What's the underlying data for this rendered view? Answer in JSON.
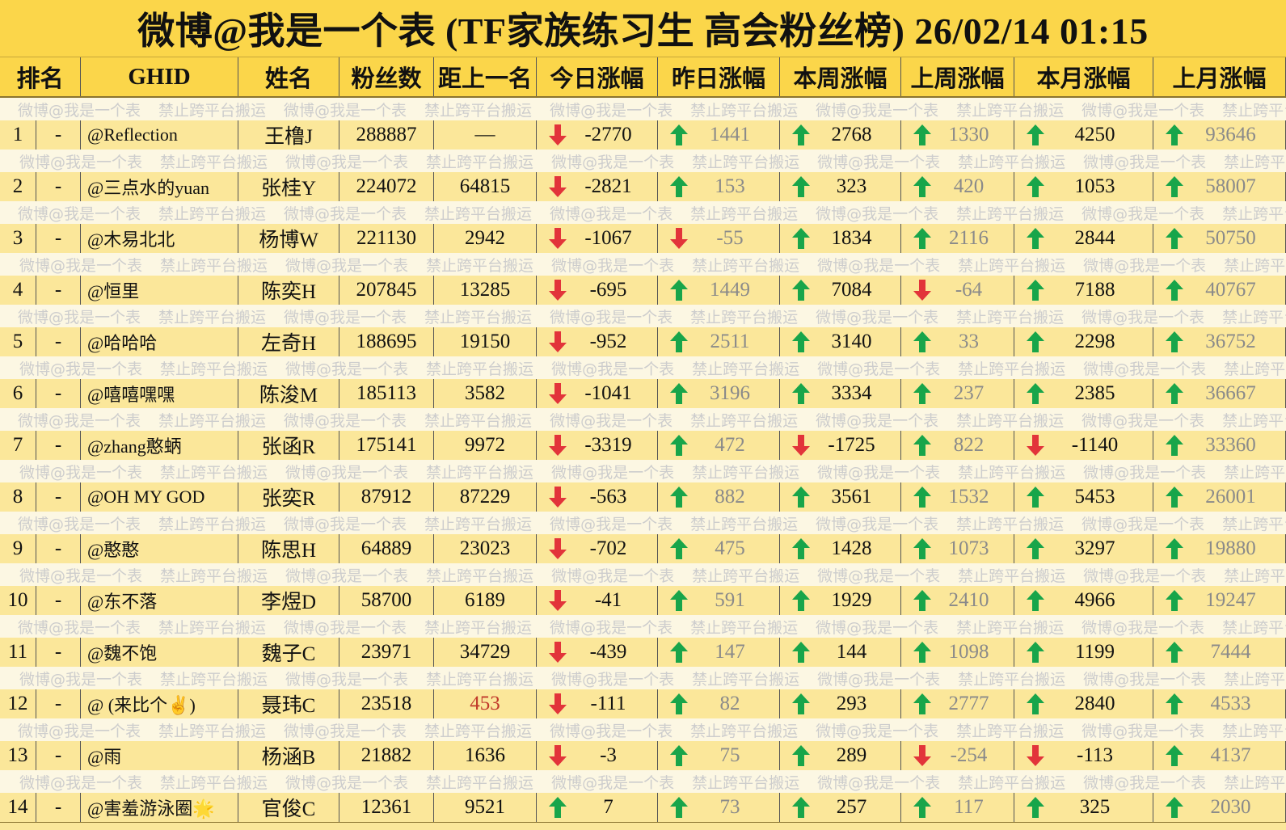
{
  "title": "微博@我是一个表 (TF家族练习生 高会粉丝榜)  26/02/14 01:15",
  "columns": [
    "排名",
    "GHID",
    "姓名",
    "粉丝数",
    "距上一名",
    "今日涨幅",
    "昨日涨幅",
    "本周涨幅",
    "上周涨幅",
    "本月涨幅",
    "上月涨幅"
  ],
  "watermark": [
    "微博@我是一个表",
    "禁止跨平台搬运"
  ],
  "colors": {
    "up": "#18a54a",
    "down": "#e2343a",
    "header_bg": "#fbd64a",
    "row_bg": "#fbe79a"
  },
  "rows": [
    {
      "rank": "1",
      "ghid_dash": "-",
      "ghid": "@Reflection",
      "name": "王橹J",
      "fans": "288887",
      "gap": "—",
      "today": "-2770",
      "yesterday": "1441",
      "week": "2768",
      "last_week": "1330",
      "month": "4250",
      "last_month": "93646"
    },
    {
      "rank": "2",
      "ghid_dash": "-",
      "ghid": "@三点水的yuan",
      "name": "张桂Y",
      "fans": "224072",
      "gap": "64815",
      "today": "-2821",
      "yesterday": "153",
      "week": "323",
      "last_week": "420",
      "month": "1053",
      "last_month": "58007"
    },
    {
      "rank": "3",
      "ghid_dash": "-",
      "ghid": "@木易北北",
      "name": "杨博W",
      "fans": "221130",
      "gap": "2942",
      "today": "-1067",
      "yesterday": "-55",
      "week": "1834",
      "last_week": "2116",
      "month": "2844",
      "last_month": "50750"
    },
    {
      "rank": "4",
      "ghid_dash": "-",
      "ghid": "@恒里",
      "name": "陈奕H",
      "fans": "207845",
      "gap": "13285",
      "today": "-695",
      "yesterday": "1449",
      "week": "7084",
      "last_week": "-64",
      "month": "7188",
      "last_month": "40767"
    },
    {
      "rank": "5",
      "ghid_dash": "-",
      "ghid": "@哈哈哈",
      "name": "左奇H",
      "fans": "188695",
      "gap": "19150",
      "today": "-952",
      "yesterday": "2511",
      "week": "3140",
      "last_week": "33",
      "month": "2298",
      "last_month": "36752"
    },
    {
      "rank": "6",
      "ghid_dash": "-",
      "ghid": "@嘻嘻嘿嘿",
      "name": "陈浚M",
      "fans": "185113",
      "gap": "3582",
      "today": "-1041",
      "yesterday": "3196",
      "week": "3334",
      "last_week": "237",
      "month": "2385",
      "last_month": "36667"
    },
    {
      "rank": "7",
      "ghid_dash": "-",
      "ghid": "@zhang憨蛃",
      "name": "张函R",
      "fans": "175141",
      "gap": "9972",
      "today": "-3319",
      "yesterday": "472",
      "week": "-1725",
      "last_week": "822",
      "month": "-1140",
      "last_month": "33360"
    },
    {
      "rank": "8",
      "ghid_dash": "-",
      "ghid": "@OH MY GOD",
      "name": "张奕R",
      "fans": "87912",
      "gap": "87229",
      "today": "-563",
      "yesterday": "882",
      "week": "3561",
      "last_week": "1532",
      "month": "5453",
      "last_month": "26001"
    },
    {
      "rank": "9",
      "ghid_dash": "-",
      "ghid": "@憨憨",
      "name": "陈思H",
      "fans": "64889",
      "gap": "23023",
      "today": "-702",
      "yesterday": "475",
      "week": "1428",
      "last_week": "1073",
      "month": "3297",
      "last_month": "19880"
    },
    {
      "rank": "10",
      "ghid_dash": "-",
      "ghid": "@东不落",
      "name": "李煜D",
      "fans": "58700",
      "gap": "6189",
      "today": "-41",
      "yesterday": "591",
      "week": "1929",
      "last_week": "2410",
      "month": "4966",
      "last_month": "19247"
    },
    {
      "rank": "11",
      "ghid_dash": "-",
      "ghid": "@魏不饱",
      "name": "魏子C",
      "fans": "23971",
      "gap": "34729",
      "today": "-439",
      "yesterday": "147",
      "week": "144",
      "last_week": "1098",
      "month": "1199",
      "last_month": "7444"
    },
    {
      "rank": "12",
      "ghid_dash": "-",
      "ghid": "@ (来比个✌)",
      "name": "聂玮C",
      "fans": "23518",
      "gap": "453",
      "today": "-111",
      "yesterday": "82",
      "week": "293",
      "last_week": "2777",
      "month": "2840",
      "last_month": "4533"
    },
    {
      "rank": "13",
      "ghid_dash": "-",
      "ghid": "@雨",
      "name": "杨涵B",
      "fans": "21882",
      "gap": "1636",
      "today": "-3",
      "yesterday": "75",
      "week": "289",
      "last_week": "-254",
      "month": "-113",
      "last_month": "4137"
    },
    {
      "rank": "14",
      "ghid_dash": "-",
      "ghid": "@害羞游泳圈🌟",
      "name": "官俊C",
      "fans": "12361",
      "gap": "9521",
      "today": "7",
      "yesterday": "73",
      "week": "257",
      "last_week": "117",
      "month": "325",
      "last_month": "2030"
    }
  ]
}
